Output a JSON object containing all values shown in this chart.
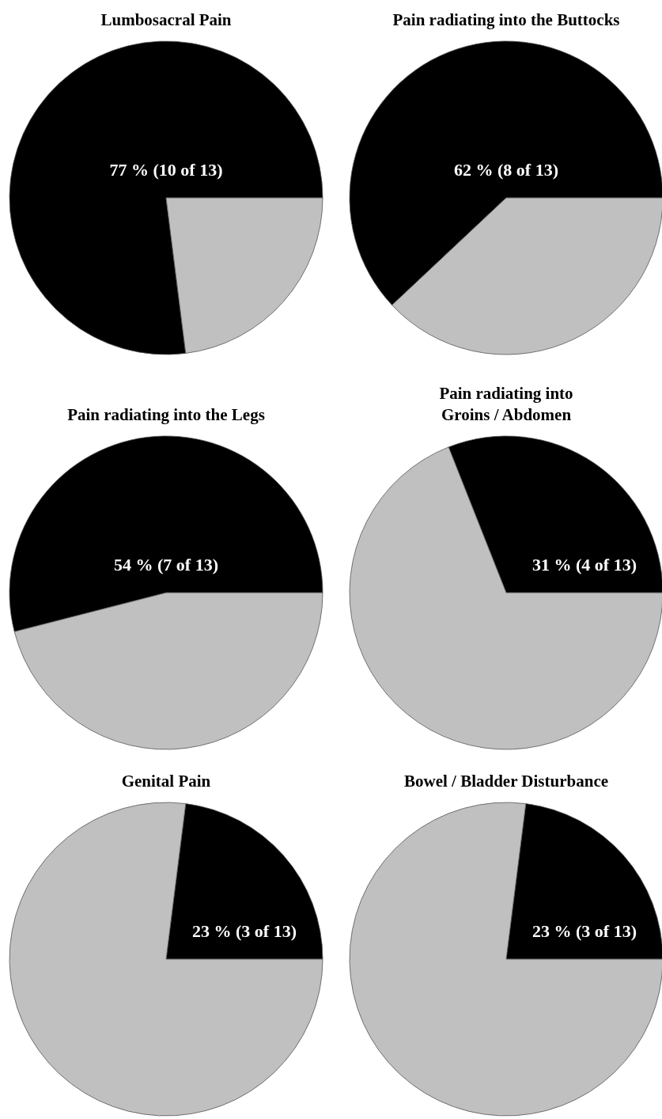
{
  "chart_data": [
    {
      "type": "pie",
      "title": "Lumbosacral Pain",
      "categories": [
        null,
        null
      ],
      "values": [
        77,
        23
      ],
      "colors": [
        "#000000",
        "#c0c0c0"
      ],
      "value_labels": [
        "77 % (10 of 13)",
        null
      ]
    },
    {
      "type": "pie",
      "title": "Pain radiating into the Buttocks",
      "categories": [
        null,
        null
      ],
      "values": [
        62,
        38
      ],
      "colors": [
        "#000000",
        "#c0c0c0"
      ],
      "value_labels": [
        "62 % (8 of 13)",
        null
      ]
    },
    {
      "type": "pie",
      "title": "Pain radiating into the Legs",
      "categories": [
        null,
        null
      ],
      "values": [
        54,
        46
      ],
      "colors": [
        "#000000",
        "#c0c0c0"
      ],
      "value_labels": [
        "54 % (7 of 13)",
        null
      ]
    },
    {
      "type": "pie",
      "title": "Pain radiating into\nGroins / Abdomen",
      "categories": [
        null,
        null
      ],
      "values": [
        31,
        69
      ],
      "colors": [
        "#000000",
        "#c0c0c0"
      ],
      "value_labels": [
        "31 % (4 of 13)",
        null
      ]
    },
    {
      "type": "pie",
      "title": "Genital Pain",
      "categories": [
        null,
        null
      ],
      "values": [
        23,
        77
      ],
      "colors": [
        "#000000",
        "#c0c0c0"
      ],
      "value_labels": [
        "23 % (3 of 13)",
        null
      ]
    },
    {
      "type": "pie",
      "title": "Bowel / Bladder Disturbance",
      "categories": [
        null,
        null
      ],
      "values": [
        23,
        77
      ],
      "colors": [
        "#000000",
        "#c0c0c0"
      ],
      "value_labels": [
        "23 % (3 of 13)",
        null
      ]
    }
  ]
}
